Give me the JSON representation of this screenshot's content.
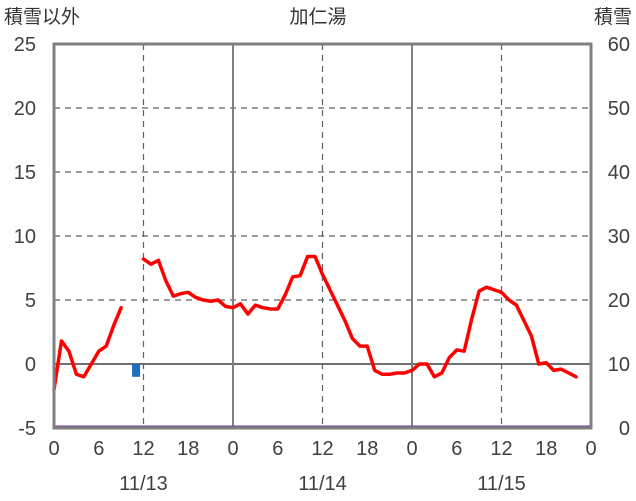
{
  "chart_data": {
    "type": "line",
    "title": "加仁湯",
    "y_left_label": "積雪以外",
    "y_right_label": "積雪",
    "y_left_ticks": [
      "25",
      "20",
      "15",
      "10",
      "5",
      "0",
      "-5"
    ],
    "y_right_ticks": [
      "60",
      "50",
      "40",
      "30",
      "20",
      "10",
      "0"
    ],
    "ylim_left": [
      -5,
      25
    ],
    "ylim_right": [
      0,
      60
    ],
    "x_range_hours": [
      0,
      72
    ],
    "x_tick_labels": [
      "0",
      "6",
      "12",
      "18",
      "0",
      "6",
      "12",
      "18",
      "0",
      "6",
      "12",
      "18",
      "0"
    ],
    "date_labels": [
      "11/13",
      "11/14",
      "11/15"
    ],
    "grid": true,
    "series": [
      {
        "axis": "left",
        "color": "#ff0000",
        "segments": [
          [
            [
              0,
              -2.0
            ],
            [
              1,
              1.8
            ],
            [
              2,
              1.0
            ],
            [
              3,
              -0.8
            ],
            [
              4,
              -1.0
            ],
            [
              5,
              0.0
            ],
            [
              6,
              1.0
            ],
            [
              7,
              1.4
            ],
            [
              8,
              3.0
            ],
            [
              9,
              4.4
            ]
          ],
          [
            [
              12,
              8.2
            ],
            [
              13,
              7.8
            ],
            [
              14,
              8.1
            ],
            [
              15,
              6.5
            ],
            [
              16,
              5.3
            ],
            [
              17,
              5.5
            ],
            [
              18,
              5.6
            ],
            [
              19,
              5.2
            ],
            [
              20,
              5.0
            ],
            [
              21,
              4.9
            ],
            [
              22,
              5.0
            ],
            [
              23,
              4.5
            ],
            [
              24,
              4.4
            ],
            [
              25,
              4.7
            ],
            [
              26,
              3.9
            ],
            [
              27,
              4.6
            ],
            [
              28,
              4.4
            ],
            [
              29,
              4.3
            ],
            [
              30,
              4.3
            ],
            [
              31,
              5.4
            ],
            [
              32,
              6.8
            ],
            [
              33,
              6.9
            ],
            [
              34,
              8.4
            ],
            [
              35,
              8.4
            ],
            [
              36,
              7.0
            ],
            [
              37,
              5.8
            ],
            [
              38,
              4.6
            ],
            [
              39,
              3.4
            ],
            [
              40,
              2.0
            ],
            [
              41,
              1.4
            ],
            [
              42,
              1.4
            ],
            [
              43,
              -0.5
            ],
            [
              44,
              -0.8
            ],
            [
              45,
              -0.8
            ],
            [
              46,
              -0.7
            ],
            [
              47,
              -0.7
            ],
            [
              48,
              -0.5
            ],
            [
              49,
              0.0
            ],
            [
              50,
              0.0
            ],
            [
              51,
              -1.0
            ],
            [
              52,
              -0.7
            ],
            [
              53,
              0.5
            ],
            [
              54,
              1.1
            ],
            [
              55,
              1.0
            ],
            [
              56,
              3.5
            ],
            [
              57,
              5.7
            ],
            [
              58,
              6.0
            ],
            [
              59,
              5.8
            ],
            [
              60,
              5.6
            ],
            [
              61,
              5.0
            ],
            [
              62,
              4.6
            ],
            [
              63,
              3.4
            ],
            [
              64,
              2.2
            ],
            [
              65,
              0.0
            ],
            [
              66,
              0.1
            ],
            [
              67,
              -0.5
            ],
            [
              68,
              -0.4
            ],
            [
              69,
              -0.7
            ],
            [
              70,
              -1.0
            ]
          ]
        ]
      },
      {
        "axis": "left",
        "type": "bar",
        "color": "#1f6fbf",
        "points": [
          [
            11,
            -1.0
          ]
        ]
      },
      {
        "axis": "right",
        "color": "#7b3f9e",
        "points": [
          [
            0,
            0
          ],
          [
            72,
            0
          ]
        ]
      }
    ]
  }
}
